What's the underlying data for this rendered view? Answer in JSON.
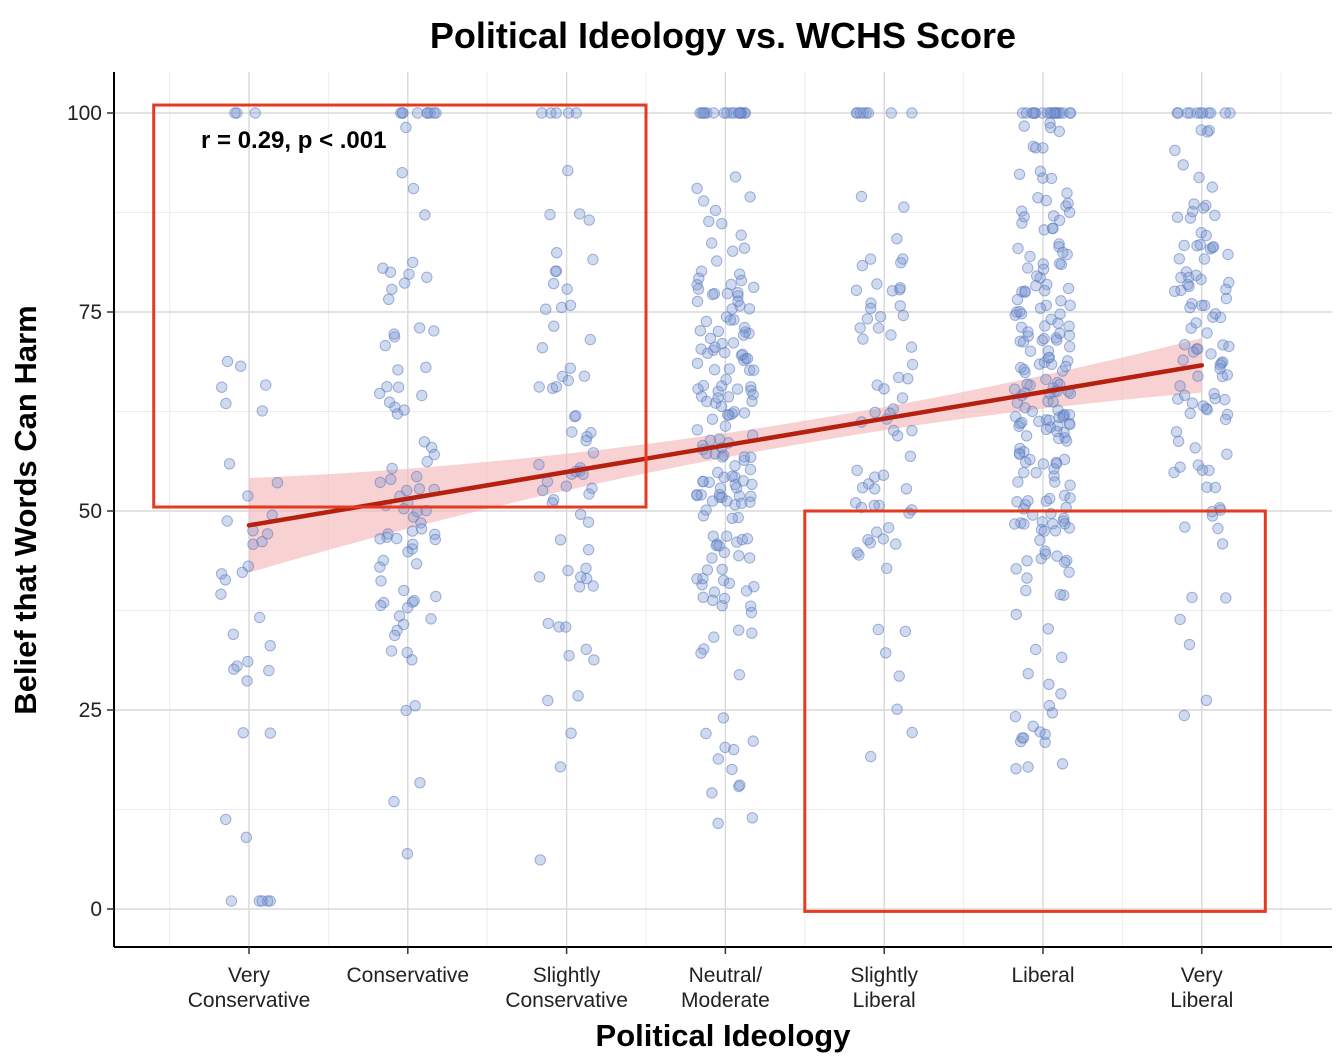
{
  "chart_data": {
    "type": "scatter",
    "title": "Political Ideology vs. WCHS Score",
    "xlabel": "Political Ideology",
    "ylabel": "Belief that Words Can Harm",
    "categories": [
      [
        "Very",
        "Conservative"
      ],
      [
        "Conservative"
      ],
      [
        "Slightly",
        "Conservative"
      ],
      [
        "Neutral/",
        "Moderate"
      ],
      [
        "Slightly",
        "Liberal"
      ],
      [
        "Liberal"
      ],
      [
        "Very",
        "Liberal"
      ]
    ],
    "yticks": [
      "0",
      "25",
      "50",
      "75",
      "100"
    ],
    "ylim": [
      -5,
      105
    ],
    "grid": true,
    "annotation": "r = 0.29, p < .001",
    "regression": {
      "x_start": 1,
      "x_end": 7,
      "y_start": 48.2,
      "y_end": 68.3
    },
    "highlight_boxes": [
      {
        "x_from": 0.4,
        "x_to": 3.5,
        "y_from": 50.5,
        "y_to": 101
      },
      {
        "x_from": 4.5,
        "x_to": 7.4,
        "y_from": -0.3,
        "y_to": 50
      }
    ],
    "point_counts": [
      40,
      90,
      70,
      190,
      75,
      220,
      110
    ],
    "colors": {
      "points": "#7896d2",
      "regression_line": "#b5200f",
      "confidence_band": "#f5b8bc",
      "highlight_box": "#e33a22"
    }
  }
}
